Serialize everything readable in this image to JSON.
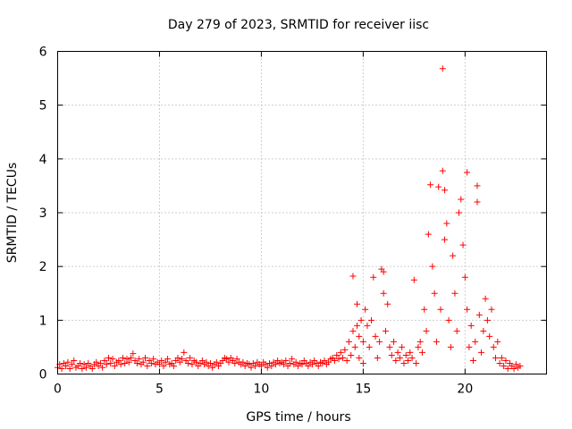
{
  "chart_data": {
    "type": "scatter",
    "title": "Day 279 of 2023, SRMTID for receiver iisc",
    "xlabel": "GPS time / hours",
    "ylabel": "SRMTID / TECUs",
    "xlim": [
      0,
      24
    ],
    "ylim": [
      0,
      6
    ],
    "xticks": [
      0,
      5,
      10,
      15,
      20
    ],
    "yticks": [
      0,
      1,
      2,
      3,
      4,
      5,
      6
    ],
    "grid": true,
    "marker": "+",
    "color": "#ff0000",
    "series": [
      {
        "name": "SRMTID",
        "points": [
          [
            0.0,
            0.12
          ],
          [
            0.1,
            0.18
          ],
          [
            0.2,
            0.1
          ],
          [
            0.3,
            0.2
          ],
          [
            0.4,
            0.15
          ],
          [
            0.5,
            0.22
          ],
          [
            0.6,
            0.1
          ],
          [
            0.7,
            0.18
          ],
          [
            0.8,
            0.25
          ],
          [
            0.9,
            0.12
          ],
          [
            1.0,
            0.15
          ],
          [
            1.1,
            0.2
          ],
          [
            1.2,
            0.1
          ],
          [
            1.3,
            0.18
          ],
          [
            1.4,
            0.12
          ],
          [
            1.5,
            0.2
          ],
          [
            1.6,
            0.15
          ],
          [
            1.7,
            0.1
          ],
          [
            1.8,
            0.18
          ],
          [
            1.9,
            0.22
          ],
          [
            2.0,
            0.15
          ],
          [
            2.1,
            0.2
          ],
          [
            2.2,
            0.12
          ],
          [
            2.3,
            0.25
          ],
          [
            2.4,
            0.18
          ],
          [
            2.5,
            0.3
          ],
          [
            2.6,
            0.2
          ],
          [
            2.7,
            0.28
          ],
          [
            2.8,
            0.15
          ],
          [
            2.9,
            0.22
          ],
          [
            3.0,
            0.25
          ],
          [
            3.1,
            0.18
          ],
          [
            3.2,
            0.3
          ],
          [
            3.3,
            0.2
          ],
          [
            3.4,
            0.28
          ],
          [
            3.5,
            0.22
          ],
          [
            3.6,
            0.3
          ],
          [
            3.7,
            0.38
          ],
          [
            3.8,
            0.25
          ],
          [
            3.9,
            0.2
          ],
          [
            4.0,
            0.28
          ],
          [
            4.1,
            0.18
          ],
          [
            4.2,
            0.22
          ],
          [
            4.3,
            0.3
          ],
          [
            4.4,
            0.15
          ],
          [
            4.5,
            0.25
          ],
          [
            4.6,
            0.2
          ],
          [
            4.7,
            0.28
          ],
          [
            4.8,
            0.18
          ],
          [
            4.9,
            0.22
          ],
          [
            5.0,
            0.18
          ],
          [
            5.1,
            0.25
          ],
          [
            5.2,
            0.15
          ],
          [
            5.3,
            0.22
          ],
          [
            5.4,
            0.28
          ],
          [
            5.5,
            0.18
          ],
          [
            5.6,
            0.2
          ],
          [
            5.7,
            0.15
          ],
          [
            5.8,
            0.25
          ],
          [
            5.9,
            0.3
          ],
          [
            6.0,
            0.22
          ],
          [
            6.1,
            0.28
          ],
          [
            6.2,
            0.4
          ],
          [
            6.3,
            0.25
          ],
          [
            6.4,
            0.2
          ],
          [
            6.5,
            0.3
          ],
          [
            6.6,
            0.18
          ],
          [
            6.7,
            0.25
          ],
          [
            6.8,
            0.22
          ],
          [
            6.9,
            0.15
          ],
          [
            7.0,
            0.2
          ],
          [
            7.1,
            0.25
          ],
          [
            7.2,
            0.18
          ],
          [
            7.3,
            0.22
          ],
          [
            7.4,
            0.15
          ],
          [
            7.5,
            0.2
          ],
          [
            7.6,
            0.12
          ],
          [
            7.7,
            0.18
          ],
          [
            7.8,
            0.22
          ],
          [
            7.9,
            0.15
          ],
          [
            8.0,
            0.2
          ],
          [
            8.1,
            0.25
          ],
          [
            8.2,
            0.3
          ],
          [
            8.3,
            0.28
          ],
          [
            8.4,
            0.22
          ],
          [
            8.5,
            0.3
          ],
          [
            8.6,
            0.25
          ],
          [
            8.7,
            0.2
          ],
          [
            8.8,
            0.28
          ],
          [
            8.9,
            0.22
          ],
          [
            9.0,
            0.18
          ],
          [
            9.1,
            0.22
          ],
          [
            9.2,
            0.15
          ],
          [
            9.3,
            0.2
          ],
          [
            9.4,
            0.18
          ],
          [
            9.5,
            0.12
          ],
          [
            9.6,
            0.2
          ],
          [
            9.7,
            0.15
          ],
          [
            9.8,
            0.22
          ],
          [
            9.9,
            0.18
          ],
          [
            10.0,
            0.15
          ],
          [
            10.1,
            0.22
          ],
          [
            10.2,
            0.18
          ],
          [
            10.3,
            0.12
          ],
          [
            10.4,
            0.2
          ],
          [
            10.5,
            0.15
          ],
          [
            10.6,
            0.22
          ],
          [
            10.7,
            0.18
          ],
          [
            10.8,
            0.25
          ],
          [
            10.9,
            0.2
          ],
          [
            11.0,
            0.22
          ],
          [
            11.1,
            0.18
          ],
          [
            11.2,
            0.25
          ],
          [
            11.3,
            0.15
          ],
          [
            11.4,
            0.2
          ],
          [
            11.5,
            0.28
          ],
          [
            11.6,
            0.18
          ],
          [
            11.7,
            0.22
          ],
          [
            11.8,
            0.15
          ],
          [
            11.9,
            0.2
          ],
          [
            12.0,
            0.18
          ],
          [
            12.1,
            0.25
          ],
          [
            12.2,
            0.2
          ],
          [
            12.3,
            0.15
          ],
          [
            12.4,
            0.22
          ],
          [
            12.5,
            0.18
          ],
          [
            12.6,
            0.25
          ],
          [
            12.7,
            0.2
          ],
          [
            12.8,
            0.15
          ],
          [
            12.9,
            0.22
          ],
          [
            13.0,
            0.2
          ],
          [
            13.1,
            0.25
          ],
          [
            13.2,
            0.18
          ],
          [
            13.3,
            0.22
          ],
          [
            13.4,
            0.28
          ],
          [
            13.5,
            0.3
          ],
          [
            13.6,
            0.25
          ],
          [
            13.7,
            0.35
          ],
          [
            13.8,
            0.28
          ],
          [
            13.9,
            0.4
          ],
          [
            14.0,
            0.3
          ],
          [
            14.1,
            0.45
          ],
          [
            14.2,
            0.25
          ],
          [
            14.3,
            0.6
          ],
          [
            14.4,
            0.35
          ],
          [
            14.5,
            0.8
          ],
          [
            14.5,
            1.82
          ],
          [
            14.6,
            0.5
          ],
          [
            14.7,
            1.3
          ],
          [
            14.7,
            0.9
          ],
          [
            14.8,
            0.3
          ],
          [
            14.8,
            0.7
          ],
          [
            14.9,
            1.0
          ],
          [
            15.0,
            0.6
          ],
          [
            15.0,
            0.2
          ],
          [
            15.1,
            1.2
          ],
          [
            15.2,
            0.9
          ],
          [
            15.3,
            0.5
          ],
          [
            15.4,
            1.0
          ],
          [
            15.5,
            1.8
          ],
          [
            15.6,
            0.7
          ],
          [
            15.7,
            0.3
          ],
          [
            15.8,
            0.6
          ],
          [
            15.9,
            1.95
          ],
          [
            16.0,
            1.5
          ],
          [
            16.0,
            1.9
          ],
          [
            16.1,
            0.8
          ],
          [
            16.2,
            1.3
          ],
          [
            16.3,
            0.5
          ],
          [
            16.4,
            0.35
          ],
          [
            16.5,
            0.6
          ],
          [
            16.6,
            0.25
          ],
          [
            16.7,
            0.4
          ],
          [
            16.8,
            0.3
          ],
          [
            16.9,
            0.5
          ],
          [
            17.0,
            0.2
          ],
          [
            17.1,
            0.35
          ],
          [
            17.2,
            0.25
          ],
          [
            17.3,
            0.4
          ],
          [
            17.4,
            0.3
          ],
          [
            17.5,
            1.75
          ],
          [
            17.6,
            0.2
          ],
          [
            17.7,
            0.5
          ],
          [
            17.8,
            0.6
          ],
          [
            17.9,
            0.4
          ],
          [
            18.0,
            1.2
          ],
          [
            18.1,
            0.8
          ],
          [
            18.2,
            2.6
          ],
          [
            18.3,
            3.52
          ],
          [
            18.4,
            2.0
          ],
          [
            18.5,
            1.5
          ],
          [
            18.6,
            0.6
          ],
          [
            18.7,
            3.48
          ],
          [
            18.8,
            1.2
          ],
          [
            18.9,
            5.68
          ],
          [
            18.9,
            3.78
          ],
          [
            19.0,
            2.5
          ],
          [
            19.0,
            3.42
          ],
          [
            19.1,
            2.8
          ],
          [
            19.2,
            1.0
          ],
          [
            19.3,
            0.5
          ],
          [
            19.4,
            2.2
          ],
          [
            19.5,
            1.5
          ],
          [
            19.6,
            0.8
          ],
          [
            19.7,
            3.0
          ],
          [
            19.8,
            3.25
          ],
          [
            19.9,
            2.4
          ],
          [
            20.0,
            1.8
          ],
          [
            20.1,
            1.2
          ],
          [
            20.1,
            3.75
          ],
          [
            20.2,
            0.5
          ],
          [
            20.3,
            0.9
          ],
          [
            20.4,
            0.25
          ],
          [
            20.5,
            0.6
          ],
          [
            20.6,
            3.5
          ],
          [
            20.6,
            3.2
          ],
          [
            20.7,
            1.1
          ],
          [
            20.8,
            0.4
          ],
          [
            20.9,
            0.8
          ],
          [
            21.0,
            1.4
          ],
          [
            21.1,
            1.0
          ],
          [
            21.2,
            0.7
          ],
          [
            21.3,
            1.2
          ],
          [
            21.4,
            0.5
          ],
          [
            21.5,
            0.3
          ],
          [
            21.6,
            0.6
          ],
          [
            21.7,
            0.2
          ],
          [
            21.8,
            0.3
          ],
          [
            21.9,
            0.15
          ],
          [
            22.0,
            0.25
          ],
          [
            22.1,
            0.1
          ],
          [
            22.2,
            0.2
          ],
          [
            22.3,
            0.15
          ],
          [
            22.4,
            0.1
          ],
          [
            22.5,
            0.18
          ],
          [
            22.6,
            0.12
          ],
          [
            22.7,
            0.15
          ]
        ]
      }
    ]
  }
}
